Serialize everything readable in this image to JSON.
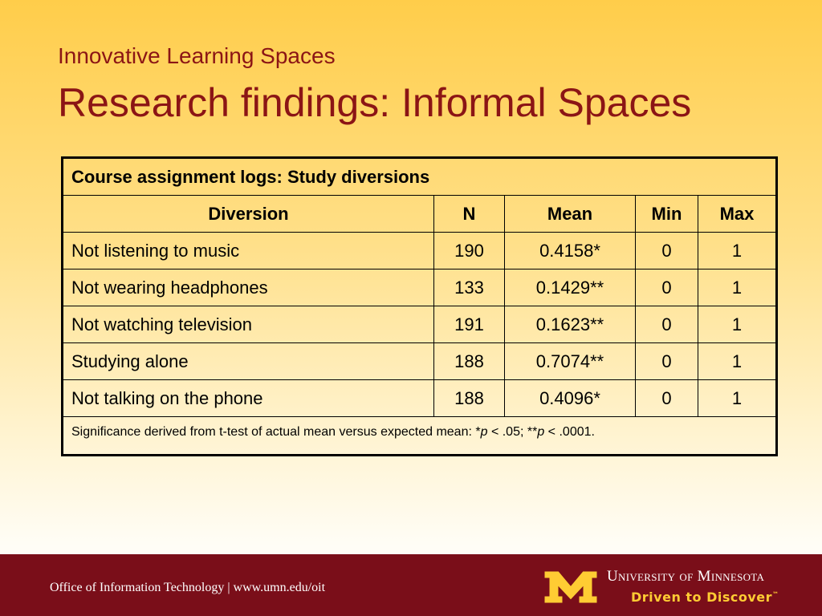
{
  "slide": {
    "subtitle": "Innovative Learning Spaces",
    "title": "Research findings: Informal Spaces"
  },
  "table": {
    "caption": "Course assignment logs: Study diversions",
    "headers": [
      "Diversion",
      "N",
      "Mean",
      "Min",
      "Max"
    ],
    "rows": [
      [
        "Not listening to music",
        "190",
        "0.4158*",
        "0",
        "1"
      ],
      [
        "Not wearing headphones",
        "133",
        "0.1429**",
        "0",
        "1"
      ],
      [
        "Not watching television",
        "191",
        "0.1623**",
        "0",
        "1"
      ],
      [
        "Studying alone",
        "188",
        "0.7074**",
        "0",
        "1"
      ],
      [
        "Not talking on the phone",
        "188",
        "0.4096*",
        "0",
        "1"
      ]
    ],
    "footnote": {
      "prefix": "Significance derived from t-test of actual mean versus expected mean: *",
      "p1": "p",
      "mid": " < .05; **",
      "p2": "p",
      "suffix": " < .0001."
    }
  },
  "footer": {
    "office": "Office of Information Technology | www.umn.edu/oit",
    "university": "University of Minnesota",
    "tagline": "Driven to Discover",
    "tagline_mark": "™"
  },
  "colors": {
    "title": "#8b1515",
    "footer_bar": "#7a0e19",
    "gold": "#ffcc33"
  }
}
